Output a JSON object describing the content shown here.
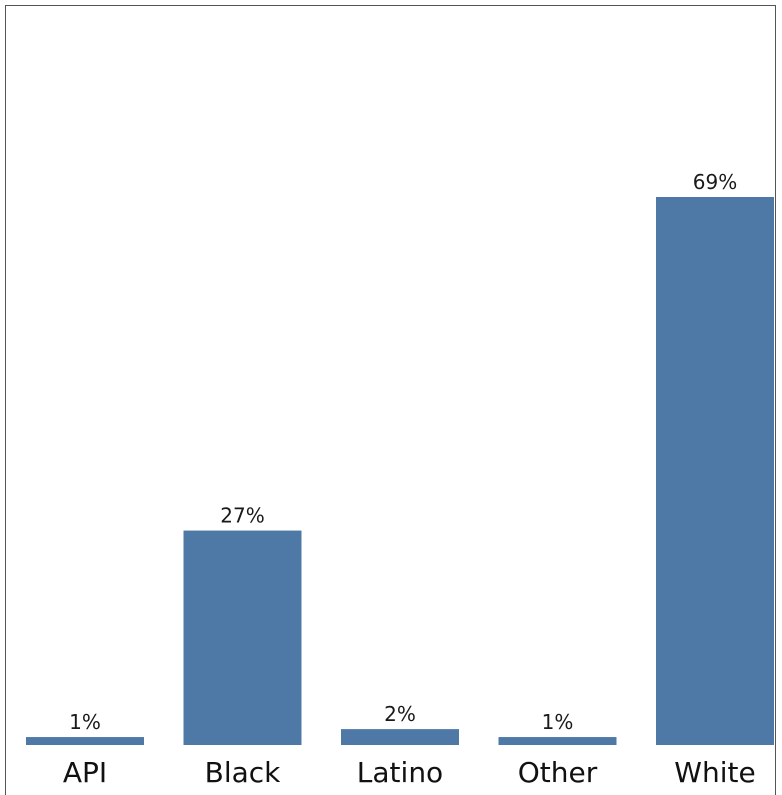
{
  "chart_data": {
    "type": "bar",
    "categories": [
      "API",
      "Black",
      "Latino",
      "Other",
      "White"
    ],
    "values": [
      1,
      27,
      2,
      1,
      69
    ],
    "data_labels": [
      "1%",
      "27%",
      "2%",
      "1%",
      "69%"
    ],
    "title": "",
    "xlabel": "",
    "ylabel": "",
    "ylim": [
      0,
      69
    ],
    "grid": false,
    "legend": "none",
    "bar_color": "#4e79a7"
  }
}
